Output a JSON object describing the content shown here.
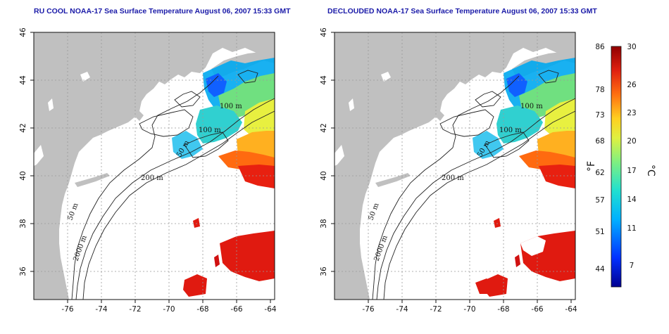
{
  "panels": [
    {
      "title": "RU COOL NOAA-17 Sea Surface Temperature August 06, 2007 15:33 GMT",
      "contours": {
        "c100a": "100 m",
        "c100b": "100 m",
        "c50a": "50 m",
        "c200": "200 m",
        "c50b": "50 m",
        "c2000": "2000 m"
      }
    },
    {
      "title": "DECLOUDED NOAA-17 Sea Surface Temperature August 06, 2007 15:33 GMT",
      "contours": {
        "c100a": "100 m",
        "c100b": "100 m",
        "c50a": "50 m",
        "c200": "200 m",
        "c50b": "50 m",
        "c2000": "2000 m"
      }
    }
  ],
  "axes": {
    "lon_ticks": [
      "-76",
      "-74",
      "-72",
      "-70",
      "-68",
      "-66",
      "-64"
    ],
    "lat_ticks": [
      "46",
      "44",
      "42",
      "40",
      "38",
      "36"
    ]
  },
  "colorbar": {
    "fahrenheit_ticks": [
      "86",
      "78",
      "73",
      "68",
      "62",
      "57",
      "51",
      "44"
    ],
    "celsius_ticks": [
      "30",
      "26",
      "23",
      "20",
      "17",
      "14",
      "11",
      "7"
    ],
    "f_unit": "°F",
    "c_unit": "°C"
  },
  "colors": {
    "land": "#c0c0c0",
    "ocean_nodata": "#ffffff",
    "grid": "#999999"
  }
}
